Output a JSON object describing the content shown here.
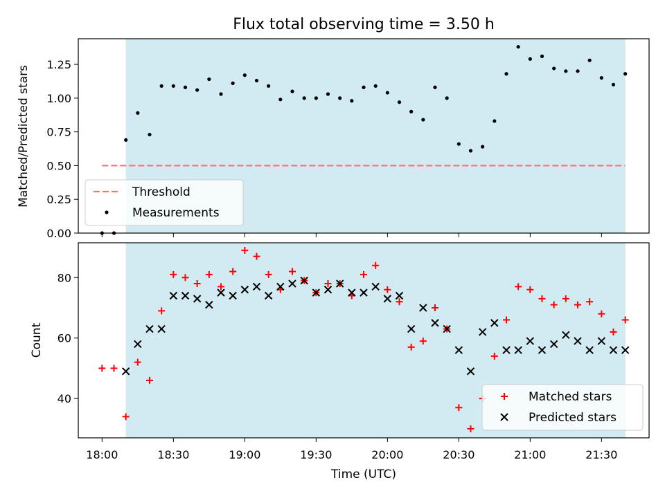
{
  "chart_data": [
    {
      "type": "scatter",
      "title": "Flux total observing time = 3.50 h",
      "xlabel": "",
      "ylabel": "Matched/Predicted stars",
      "ylim": [
        0,
        1.44
      ],
      "yticks": [
        "0.00",
        "0.25",
        "0.50",
        "0.75",
        "1.00",
        "1.25"
      ],
      "ytick_values": [
        0,
        0.25,
        0.5,
        0.75,
        1.0,
        1.25
      ],
      "shaded_region": {
        "start": 10,
        "end": 220,
        "color": "#add8e6"
      },
      "threshold": {
        "name": "Threshold",
        "value": 0.5,
        "x_start": 0,
        "x_end": 220,
        "color": "#ff7070"
      },
      "legend": {
        "location": "lower-left",
        "entries": [
          "Threshold",
          "Measurements"
        ]
      },
      "series": [
        {
          "name": "Measurements",
          "x": [
            0,
            5,
            10,
            15,
            20,
            25,
            30,
            35,
            40,
            45,
            50,
            55,
            60,
            65,
            70,
            75,
            80,
            85,
            90,
            95,
            100,
            105,
            110,
            115,
            120,
            125,
            130,
            135,
            140,
            145,
            150,
            155,
            160,
            165,
            170,
            175,
            180,
            185,
            190,
            195,
            200,
            205,
            210,
            215,
            220
          ],
          "y": [
            0.0,
            0.0,
            0.69,
            0.89,
            0.73,
            1.09,
            1.09,
            1.08,
            1.06,
            1.14,
            1.03,
            1.11,
            1.17,
            1.13,
            1.09,
            0.99,
            1.05,
            1.0,
            1.0,
            1.03,
            1.0,
            0.98,
            1.08,
            1.09,
            1.04,
            0.97,
            0.9,
            0.84,
            1.08,
            1.0,
            0.66,
            0.61,
            0.64,
            0.83,
            1.18,
            1.38,
            1.29,
            1.31,
            1.22,
            1.2,
            1.2,
            1.28,
            1.15,
            1.1,
            1.18
          ],
          "color": "#000000"
        }
      ]
    },
    {
      "type": "scatter",
      "title": "",
      "xlabel": "Time (UTC)",
      "ylabel": "Count",
      "ylim": [
        27,
        91.5
      ],
      "yticks": [
        "40",
        "60",
        "80"
      ],
      "ytick_values": [
        40,
        60,
        80
      ],
      "xticks": [
        "18:00",
        "18:30",
        "19:00",
        "19:30",
        "20:00",
        "20:30",
        "21:00",
        "21:30"
      ],
      "xtick_values": [
        0,
        30,
        60,
        90,
        120,
        150,
        180,
        210
      ],
      "shaded_region": {
        "start": 10,
        "end": 220,
        "color": "#add8e6"
      },
      "legend": {
        "location": "lower-right",
        "entries": [
          "Matched stars",
          "Predicted stars"
        ]
      },
      "series": [
        {
          "name": "Matched stars",
          "marker": "plus",
          "color": "#ff0000",
          "x": [
            0,
            5,
            10,
            15,
            20,
            25,
            30,
            35,
            40,
            45,
            50,
            55,
            60,
            65,
            70,
            75,
            80,
            85,
            90,
            95,
            100,
            105,
            110,
            115,
            120,
            125,
            130,
            135,
            140,
            145,
            150,
            155,
            160,
            165,
            170,
            175,
            180,
            185,
            190,
            195,
            200,
            205,
            210,
            215,
            220
          ],
          "y": [
            50,
            50,
            34,
            52,
            46,
            69,
            81,
            80,
            78,
            81,
            77,
            82,
            89,
            87,
            81,
            76,
            82,
            79,
            75,
            78,
            78,
            74,
            81,
            84,
            76,
            72,
            57,
            59,
            70,
            63,
            37,
            30,
            40,
            54,
            66,
            77,
            76,
            73,
            71,
            73,
            71,
            72,
            68,
            62,
            66
          ]
        },
        {
          "name": "Predicted stars",
          "marker": "x",
          "color": "#000000",
          "x": [
            10,
            15,
            20,
            25,
            30,
            35,
            40,
            45,
            50,
            55,
            60,
            65,
            70,
            75,
            80,
            85,
            90,
            95,
            100,
            105,
            110,
            115,
            120,
            125,
            130,
            135,
            140,
            145,
            150,
            155,
            160,
            165,
            170,
            175,
            180,
            185,
            190,
            195,
            200,
            205,
            210,
            215,
            220
          ],
          "y": [
            49,
            58,
            63,
            63,
            74,
            74,
            73,
            71,
            75,
            74,
            76,
            77,
            74,
            77,
            78,
            79,
            75,
            76,
            78,
            75,
            75,
            77,
            73,
            74,
            63,
            70,
            65,
            63,
            56,
            49,
            62,
            65,
            56,
            56,
            59,
            56,
            58,
            61,
            59,
            56,
            59,
            56,
            56
          ]
        }
      ]
    }
  ]
}
